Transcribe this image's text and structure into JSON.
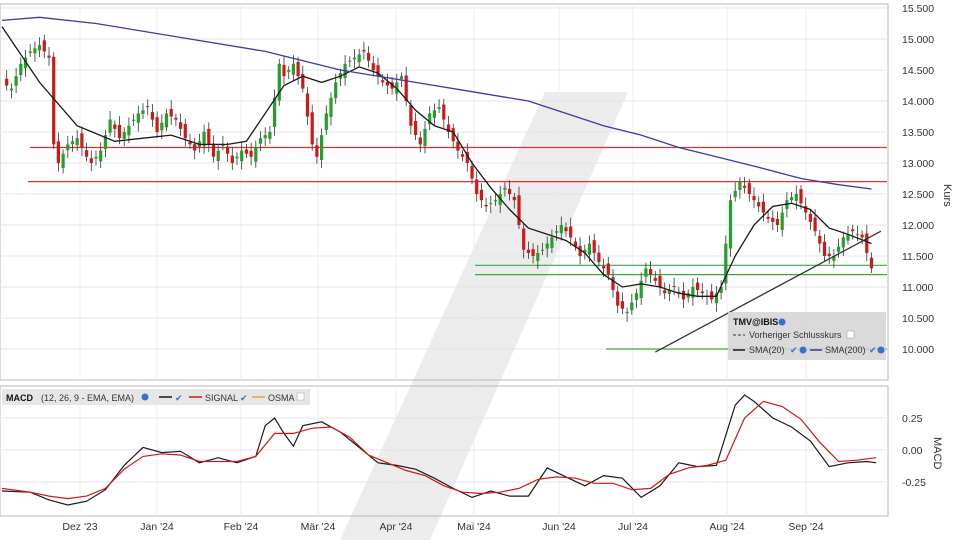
{
  "chart_data": [
    {
      "type": "candlestick",
      "instrument": "TMV@IBIS",
      "x_labels": [
        "Dez '23",
        "Jan '24",
        "Feb '24",
        "Mär '24",
        "Apr '24",
        "Mai '24",
        "Jun '24",
        "Jul '24",
        "Aug '24",
        "Sep '24"
      ],
      "ylabel": "Kurs",
      "ylim": [
        9.8,
        15.5
      ],
      "y_ticks": [
        "15.500",
        "15.000",
        "14.500",
        "14.000",
        "13.500",
        "13.000",
        "12.500",
        "12.000",
        "11.500",
        "11.000",
        "10.500",
        "10.000"
      ],
      "grid": true,
      "colors": {
        "up": "#22a02a",
        "down": "#d01818",
        "close_line": "#1a1a1a",
        "sma20": "#1a1a1a",
        "sma200": "#3b3ba0",
        "resistance": "#dc3232",
        "support": "#3aaa3a",
        "trendline": "#333333"
      },
      "close_path": [
        [
          0,
          14.3
        ],
        [
          2,
          14.2
        ],
        [
          4,
          14.6
        ],
        [
          6,
          14.8
        ],
        [
          8,
          14.9
        ],
        [
          10,
          14.7
        ],
        [
          11,
          13.3
        ],
        [
          12,
          13.0
        ],
        [
          14,
          13.3
        ],
        [
          16,
          13.4
        ],
        [
          18,
          13.1
        ],
        [
          19,
          13.0
        ],
        [
          21,
          13.2
        ],
        [
          23,
          13.7
        ],
        [
          25,
          13.4
        ],
        [
          27,
          13.6
        ],
        [
          29,
          13.8
        ],
        [
          31,
          13.9
        ],
        [
          33,
          13.5
        ],
        [
          35,
          13.8
        ],
        [
          37,
          13.7
        ],
        [
          39,
          13.4
        ],
        [
          41,
          13.2
        ],
        [
          43,
          13.5
        ],
        [
          45,
          13.1
        ],
        [
          47,
          13.3
        ],
        [
          49,
          13.0
        ],
        [
          51,
          13.2
        ],
        [
          53,
          13.1
        ],
        [
          55,
          13.4
        ],
        [
          57,
          13.5
        ],
        [
          59,
          14.6
        ],
        [
          60,
          14.4
        ],
        [
          62,
          14.6
        ],
        [
          64,
          14.2
        ],
        [
          66,
          13.3
        ],
        [
          67,
          13.1
        ],
        [
          69,
          13.8
        ],
        [
          71,
          14.3
        ],
        [
          73,
          14.6
        ],
        [
          75,
          14.7
        ],
        [
          77,
          14.8
        ],
        [
          79,
          14.5
        ],
        [
          81,
          14.3
        ],
        [
          83,
          14.2
        ],
        [
          85,
          14.4
        ],
        [
          87,
          13.6
        ],
        [
          89,
          13.3
        ],
        [
          91,
          13.8
        ],
        [
          93,
          13.9
        ],
        [
          95,
          13.5
        ],
        [
          97,
          13.2
        ],
        [
          99,
          13.0
        ],
        [
          101,
          12.5
        ],
        [
          103,
          12.3
        ],
        [
          105,
          12.4
        ],
        [
          107,
          12.6
        ],
        [
          109,
          12.4
        ],
        [
          111,
          11.6
        ],
        [
          113,
          11.5
        ],
        [
          115,
          11.6
        ],
        [
          117,
          11.8
        ],
        [
          119,
          12.0
        ],
        [
          121,
          11.8
        ],
        [
          123,
          11.5
        ],
        [
          125,
          11.7
        ],
        [
          127,
          11.4
        ],
        [
          129,
          11.2
        ],
        [
          131,
          10.7
        ],
        [
          133,
          10.6
        ],
        [
          135,
          10.9
        ],
        [
          137,
          11.3
        ],
        [
          139,
          11.1
        ],
        [
          141,
          10.9
        ],
        [
          143,
          11.0
        ],
        [
          145,
          10.8
        ],
        [
          147,
          11.0
        ],
        [
          149,
          10.9
        ],
        [
          151,
          10.8
        ],
        [
          153,
          11.0
        ],
        [
          155,
          12.4
        ],
        [
          157,
          12.7
        ],
        [
          159,
          12.5
        ],
        [
          161,
          12.3
        ],
        [
          163,
          12.1
        ],
        [
          165,
          12.0
        ],
        [
          167,
          12.4
        ],
        [
          169,
          12.5
        ],
        [
          171,
          12.2
        ],
        [
          173,
          11.9
        ],
        [
          175,
          11.5
        ],
        [
          177,
          11.5
        ],
        [
          179,
          11.8
        ],
        [
          181,
          11.9
        ],
        [
          183,
          11.8
        ],
        [
          185,
          11.3
        ]
      ],
      "overlay_series": [
        {
          "name": "SMA(20)",
          "color": "#1a1a1a",
          "points": [
            [
              0,
              15.2
            ],
            [
              8,
              14.3
            ],
            [
              16,
              13.6
            ],
            [
              24,
              13.35
            ],
            [
              30,
              13.4
            ],
            [
              36,
              13.45
            ],
            [
              42,
              13.3
            ],
            [
              48,
              13.3
            ],
            [
              52,
              13.35
            ],
            [
              56,
              13.8
            ],
            [
              60,
              14.25
            ],
            [
              64,
              14.4
            ],
            [
              68,
              14.3
            ],
            [
              72,
              14.4
            ],
            [
              76,
              14.55
            ],
            [
              80,
              14.45
            ],
            [
              84,
              14.2
            ],
            [
              88,
              13.85
            ],
            [
              92,
              13.6
            ],
            [
              96,
              13.5
            ],
            [
              100,
              13.0
            ],
            [
              104,
              12.6
            ],
            [
              108,
              12.25
            ],
            [
              112,
              11.95
            ],
            [
              116,
              11.85
            ],
            [
              120,
              11.75
            ],
            [
              124,
              11.55
            ],
            [
              128,
              11.2
            ],
            [
              132,
              11.0
            ],
            [
              136,
              11.05
            ],
            [
              140,
              11.0
            ],
            [
              144,
              10.9
            ],
            [
              148,
              10.85
            ],
            [
              152,
              10.85
            ],
            [
              156,
              11.5
            ],
            [
              160,
              12.0
            ],
            [
              164,
              12.3
            ],
            [
              168,
              12.35
            ],
            [
              172,
              12.25
            ],
            [
              176,
              11.95
            ],
            [
              180,
              11.85
            ],
            [
              185,
              11.7
            ]
          ]
        },
        {
          "name": "SMA(200)",
          "color": "#3b3ba0",
          "points": [
            [
              0,
              15.3
            ],
            [
              8,
              15.35
            ],
            [
              20,
              15.25
            ],
            [
              40,
              15.0
            ],
            [
              56,
              14.8
            ],
            [
              72,
              14.5
            ],
            [
              88,
              14.3
            ],
            [
              100,
              14.15
            ],
            [
              112,
              14.0
            ],
            [
              120,
              13.8
            ],
            [
              128,
              13.6
            ],
            [
              136,
              13.45
            ],
            [
              144,
              13.25
            ],
            [
              152,
              13.1
            ],
            [
              160,
              12.95
            ],
            [
              170,
              12.75
            ],
            [
              178,
              12.65
            ],
            [
              185,
              12.58
            ]
          ]
        }
      ],
      "horizontal_lines": [
        {
          "value": 13.25,
          "kind": "resistance"
        },
        {
          "value": 12.7,
          "kind": "resistance"
        },
        {
          "value": 11.35,
          "kind": "support"
        },
        {
          "value": 11.2,
          "kind": "support"
        },
        {
          "value": 10.0,
          "kind": "support"
        }
      ],
      "trendline": {
        "from": [
          139,
          9.95
        ],
        "to": [
          187,
          11.9
        ]
      },
      "legend": {
        "placement": "bottom-right",
        "title": "TMV@IBIS",
        "items": [
          {
            "label": "Vorheriger Schlusskurs",
            "style": "dashed"
          },
          {
            "label": "SMA(20)",
            "style": "solid",
            "color": "#1a1a1a"
          },
          {
            "label": "SMA(200)",
            "style": "solid",
            "color": "#3b3ba0"
          }
        ]
      }
    },
    {
      "type": "line",
      "title": "MACD",
      "params": "(12, 26, 9 - EMA, EMA)",
      "ylabel": "MACD",
      "ylim": [
        -0.48,
        0.5
      ],
      "y_ticks": [
        "0.25",
        "0.00",
        "-0.25"
      ],
      "legend_items": [
        "SIGNAL",
        "OSMA"
      ],
      "series": [
        {
          "name": "MACD",
          "color": "#1a1a1a",
          "points": [
            [
              0,
              -0.32
            ],
            [
              6,
              -0.33
            ],
            [
              10,
              -0.39
            ],
            [
              14,
              -0.43
            ],
            [
              18,
              -0.4
            ],
            [
              22,
              -0.31
            ],
            [
              26,
              -0.12
            ],
            [
              30,
              0.02
            ],
            [
              34,
              -0.02
            ],
            [
              38,
              -0.01
            ],
            [
              42,
              -0.1
            ],
            [
              46,
              -0.06
            ],
            [
              50,
              -0.1
            ],
            [
              54,
              -0.05
            ],
            [
              56,
              0.19
            ],
            [
              58,
              0.25
            ],
            [
              60,
              0.13
            ],
            [
              62,
              0.03
            ],
            [
              64,
              0.19
            ],
            [
              68,
              0.22
            ],
            [
              72,
              0.14
            ],
            [
              76,
              0.02
            ],
            [
              80,
              -0.1
            ],
            [
              84,
              -0.12
            ],
            [
              88,
              -0.15
            ],
            [
              92,
              -0.22
            ],
            [
              96,
              -0.3
            ],
            [
              100,
              -0.37
            ],
            [
              104,
              -0.32
            ],
            [
              108,
              -0.36
            ],
            [
              112,
              -0.36
            ],
            [
              116,
              -0.14
            ],
            [
              120,
              -0.21
            ],
            [
              124,
              -0.28
            ],
            [
              128,
              -0.2
            ],
            [
              132,
              -0.22
            ],
            [
              136,
              -0.37
            ],
            [
              140,
              -0.28
            ],
            [
              144,
              -0.1
            ],
            [
              148,
              -0.13
            ],
            [
              152,
              -0.12
            ],
            [
              156,
              0.35
            ],
            [
              158,
              0.43
            ],
            [
              160,
              0.38
            ],
            [
              164,
              0.25
            ],
            [
              168,
              0.18
            ],
            [
              172,
              0.07
            ],
            [
              176,
              -0.13
            ],
            [
              180,
              -0.1
            ],
            [
              184,
              -0.09
            ],
            [
              186,
              -0.1
            ]
          ]
        },
        {
          "name": "SIGNAL",
          "color": "#d01818",
          "points": [
            [
              0,
              -0.3
            ],
            [
              6,
              -0.33
            ],
            [
              10,
              -0.36
            ],
            [
              14,
              -0.38
            ],
            [
              18,
              -0.36
            ],
            [
              22,
              -0.3
            ],
            [
              26,
              -0.15
            ],
            [
              30,
              -0.05
            ],
            [
              34,
              -0.03
            ],
            [
              38,
              -0.04
            ],
            [
              42,
              -0.09
            ],
            [
              46,
              -0.09
            ],
            [
              50,
              -0.09
            ],
            [
              54,
              -0.05
            ],
            [
              58,
              0.13
            ],
            [
              62,
              0.13
            ],
            [
              66,
              0.17
            ],
            [
              70,
              0.18
            ],
            [
              74,
              0.1
            ],
            [
              78,
              -0.04
            ],
            [
              82,
              -0.1
            ],
            [
              86,
              -0.16
            ],
            [
              90,
              -0.2
            ],
            [
              94,
              -0.28
            ],
            [
              98,
              -0.33
            ],
            [
              102,
              -0.34
            ],
            [
              106,
              -0.33
            ],
            [
              110,
              -0.3
            ],
            [
              114,
              -0.23
            ],
            [
              118,
              -0.21
            ],
            [
              122,
              -0.22
            ],
            [
              126,
              -0.26
            ],
            [
              130,
              -0.26
            ],
            [
              134,
              -0.31
            ],
            [
              138,
              -0.3
            ],
            [
              142,
              -0.19
            ],
            [
              146,
              -0.14
            ],
            [
              150,
              -0.12
            ],
            [
              154,
              -0.08
            ],
            [
              158,
              0.25
            ],
            [
              162,
              0.38
            ],
            [
              166,
              0.34
            ],
            [
              170,
              0.24
            ],
            [
              174,
              0.06
            ],
            [
              178,
              -0.09
            ],
            [
              182,
              -0.08
            ],
            [
              186,
              -0.06
            ]
          ]
        }
      ]
    }
  ]
}
